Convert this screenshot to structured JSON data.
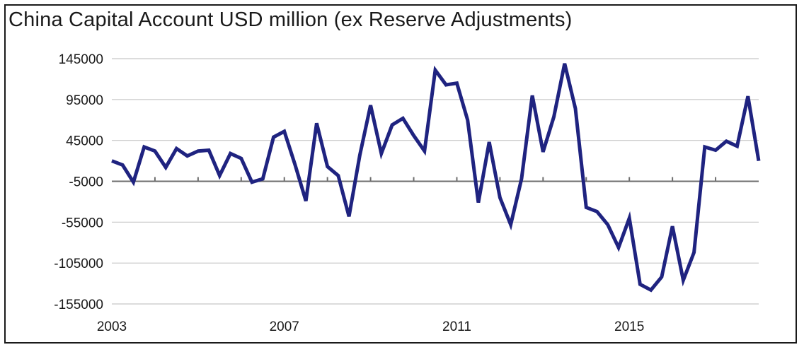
{
  "chart_data": {
    "type": "line",
    "title": "China Capital Account USD million (ex Reserve Adjustments)",
    "xlabel": "",
    "ylabel": "",
    "ylim": [
      -155000,
      145000
    ],
    "y_ticks": [
      "145000",
      "95000",
      "45000",
      "-5000",
      "-55000",
      "-105000",
      "-155000"
    ],
    "y_tick_values": [
      145000,
      95000,
      45000,
      -5000,
      -55000,
      -105000,
      -155000
    ],
    "x_ticks": [
      "2003",
      "2007",
      "2011",
      "2015"
    ],
    "x_tick_values": [
      2003,
      2007,
      2011,
      2015
    ],
    "grid": "horizontal",
    "color": "#1f2380",
    "series": [
      {
        "name": "",
        "x": [
          2003.0,
          2003.25,
          2003.5,
          2003.75,
          2004.0,
          2004.25,
          2004.5,
          2004.75,
          2005.0,
          2005.25,
          2005.5,
          2005.75,
          2006.0,
          2006.25,
          2006.5,
          2006.75,
          2007.0,
          2007.25,
          2007.5,
          2007.75,
          2008.0,
          2008.25,
          2008.5,
          2008.75,
          2009.0,
          2009.25,
          2009.5,
          2009.75,
          2010.0,
          2010.25,
          2010.5,
          2010.75,
          2011.0,
          2011.25,
          2011.5,
          2011.75,
          2012.0,
          2012.25,
          2012.5,
          2012.75,
          2013.0,
          2013.25,
          2013.5,
          2013.75,
          2014.0,
          2014.25,
          2014.5,
          2014.75,
          2015.0,
          2015.25,
          2015.5,
          2015.75,
          2016.0,
          2016.25,
          2016.5,
          2016.75,
          2017.0,
          2017.25,
          2017.5,
          2017.75,
          2018.0
        ],
        "values": [
          20000,
          15000,
          -6000,
          37000,
          32000,
          12000,
          35000,
          26000,
          32000,
          33000,
          2000,
          29000,
          23000,
          -6000,
          -2000,
          49000,
          56000,
          15000,
          -29000,
          66000,
          13000,
          2000,
          -48000,
          27000,
          88000,
          29000,
          64000,
          72000,
          51000,
          32000,
          131000,
          113000,
          115000,
          70000,
          -31000,
          43000,
          -25000,
          -58000,
          -2000,
          100000,
          31000,
          74000,
          139000,
          84000,
          -37000,
          -42000,
          -58000,
          -86000,
          -50000,
          -131000,
          -138000,
          -122000,
          -60000,
          -126000,
          -92000,
          37000,
          33000,
          44000,
          38000,
          99000,
          20000
        ]
      }
    ]
  }
}
